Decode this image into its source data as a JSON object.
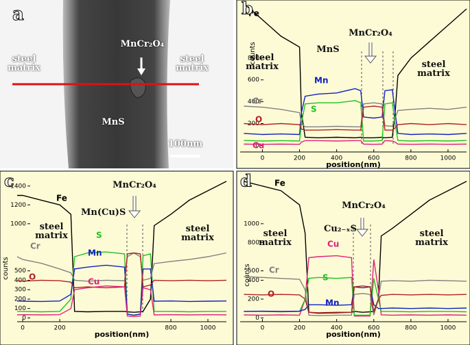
{
  "panel_a": {
    "label": "a",
    "annotations": [
      "steel matrix",
      "MnCr₂O₄",
      "steel matrix",
      "MnS",
      "100nm"
    ]
  },
  "chart_data": [
    {
      "type": "line",
      "label": "b",
      "ylabel": "counts",
      "xlabel": "position(nm)",
      "x": [
        -100,
        0,
        100,
        200,
        210,
        230,
        300,
        400,
        500,
        530,
        545,
        600,
        645,
        660,
        700,
        715,
        730,
        800,
        900,
        1000,
        1100
      ],
      "xlim": [
        -120,
        1100
      ],
      "xticks": [
        0,
        200,
        400,
        600,
        800,
        1000
      ],
      "ylim": [
        -60,
        1300
      ],
      "yticks": [
        0,
        200,
        400,
        600,
        800
      ],
      "series": [
        {
          "name": "Fe",
          "color": "#000000",
          "values": [
            1300,
            1150,
            1000,
            900,
            300,
            75,
            70,
            75,
            70,
            75,
            70,
            70,
            75,
            70,
            75,
            300,
            640,
            800,
            950,
            1100,
            1250
          ]
        },
        {
          "name": "Mn",
          "color": "#1020c0",
          "values": [
            110,
            100,
            105,
            100,
            300,
            450,
            470,
            480,
            520,
            500,
            260,
            250,
            260,
            500,
            510,
            300,
            110,
            100,
            105,
            100,
            110
          ]
        },
        {
          "name": "S",
          "color": "#20c020",
          "values": [
            45,
            40,
            44,
            40,
            200,
            380,
            390,
            390,
            410,
            390,
            40,
            40,
            45,
            380,
            390,
            200,
            45,
            40,
            44,
            40,
            45
          ]
        },
        {
          "name": "Cr",
          "color": "#808080",
          "values": [
            360,
            350,
            330,
            300,
            200,
            170,
            170,
            175,
            170,
            170,
            380,
            390,
            380,
            180,
            175,
            250,
            320,
            330,
            340,
            330,
            350
          ]
        },
        {
          "name": "O",
          "color": "#b02020",
          "values": [
            200,
            190,
            200,
            190,
            150,
            140,
            140,
            145,
            140,
            140,
            350,
            360,
            350,
            140,
            140,
            160,
            190,
            200,
            190,
            200,
            190
          ]
        },
        {
          "name": "Cu",
          "color": "#e0207a",
          "values": [
            12,
            10,
            12,
            10,
            30,
            44,
            44,
            40,
            44,
            44,
            12,
            10,
            12,
            44,
            40,
            30,
            12,
            10,
            12,
            10,
            12
          ]
        }
      ],
      "annotations": [
        "steel matrix",
        "MnS",
        "MnCr₂O₄",
        "steel matrix"
      ]
    },
    {
      "type": "line",
      "label": "c",
      "ylabel": "counts",
      "xlabel": "position(nm)",
      "x": [
        -30,
        0,
        100,
        200,
        260,
        280,
        350,
        450,
        550,
        565,
        600,
        635,
        650,
        690,
        710,
        800,
        900,
        1000,
        1100
      ],
      "xlim": [
        -30,
        1100
      ],
      "xticks": [
        0,
        200,
        800,
        1000
      ],
      "ylim": [
        -40,
        1500
      ],
      "yticks": [
        0,
        100,
        200,
        300,
        400,
        500,
        1000,
        1200,
        1400
      ],
      "series": [
        {
          "name": "Fe",
          "color": "#000000",
          "values": [
            1300,
            1300,
            1250,
            1200,
            1100,
            70,
            65,
            70,
            70,
            65,
            60,
            65,
            70,
            200,
            980,
            1100,
            1250,
            1350,
            1450
          ]
        },
        {
          "name": "S",
          "color": "#20c020",
          "values": [
            70,
            70,
            65,
            70,
            200,
            650,
            690,
            700,
            680,
            40,
            30,
            40,
            660,
            680,
            70,
            70,
            65,
            70,
            70
          ]
        },
        {
          "name": "Mn",
          "color": "#1020c0",
          "values": [
            180,
            178,
            175,
            180,
            250,
            520,
            540,
            560,
            540,
            40,
            30,
            40,
            520,
            520,
            178,
            180,
            175,
            178,
            180
          ]
        },
        {
          "name": "Cr",
          "color": "#808080",
          "values": [
            650,
            620,
            580,
            520,
            480,
            400,
            390,
            400,
            395,
            650,
            690,
            650,
            400,
            420,
            577,
            600,
            620,
            650,
            690
          ]
        },
        {
          "name": "O",
          "color": "#b02020",
          "values": [
            395,
            390,
            400,
            395,
            380,
            320,
            330,
            320,
            330,
            680,
            690,
            680,
            330,
            350,
            400,
            395,
            400,
            395,
            400
          ]
        },
        {
          "name": "Cu",
          "color": "#e0207a",
          "values": [
            33,
            35,
            33,
            35,
            100,
            300,
            320,
            340,
            330,
            20,
            15,
            20,
            320,
            300,
            33,
            35,
            33,
            35,
            33
          ]
        }
      ],
      "annotations": [
        "steel matrix",
        "Mn(Cu)S",
        "MnCr₂O₄",
        "steel matrix"
      ]
    },
    {
      "type": "line",
      "label": "d",
      "ylabel": "counts",
      "xlabel": "position(nm)",
      "x": [
        -100,
        0,
        100,
        200,
        230,
        250,
        300,
        400,
        480,
        495,
        540,
        580,
        600,
        625,
        640,
        700,
        800,
        900,
        1000,
        1100
      ],
      "xlim": [
        -120,
        1100
      ],
      "xticks": [
        0,
        200,
        400,
        600,
        800,
        1000
      ],
      "ylim": [
        -40,
        1500
      ],
      "yticks": [
        0,
        200,
        400,
        500,
        800,
        1000
      ],
      "series": [
        {
          "name": "Fe",
          "color": "#000000",
          "values": [
            1450,
            1400,
            1350,
            1200,
            900,
            60,
            50,
            55,
            60,
            70,
            60,
            65,
            70,
            200,
            870,
            950,
            1100,
            1250,
            1350,
            1450
          ]
        },
        {
          "name": "Cu",
          "color": "#e0207a",
          "values": [
            33,
            30,
            33,
            30,
            200,
            640,
            650,
            660,
            640,
            20,
            20,
            20,
            620,
            300,
            33,
            30,
            33,
            30,
            33,
            30
          ]
        },
        {
          "name": "S",
          "color": "#20c020",
          "values": [
            70,
            70,
            65,
            70,
            200,
            420,
            430,
            420,
            430,
            30,
            30,
            30,
            420,
            200,
            70,
            70,
            65,
            70,
            70,
            65
          ]
        },
        {
          "name": "Mn",
          "color": "#1020c0",
          "values": [
            70,
            72,
            70,
            72,
            90,
            140,
            140,
            135,
            140,
            330,
            320,
            330,
            140,
            100,
            100,
            105,
            100,
            105,
            100,
            105
          ]
        },
        {
          "name": "Cr",
          "color": "#808080",
          "values": [
            440,
            430,
            420,
            410,
            300,
            30,
            25,
            30,
            30,
            250,
            260,
            250,
            30,
            200,
            390,
            395,
            390,
            400,
            395,
            390
          ]
        },
        {
          "name": "O",
          "color": "#b02020",
          "values": [
            250,
            245,
            250,
            245,
            200,
            60,
            55,
            60,
            60,
            330,
            340,
            330,
            60,
            200,
            240,
            250,
            245,
            250,
            245,
            250
          ]
        }
      ],
      "annotations": [
        "steel matrix",
        "Cu₂₋ₓS",
        "MnCr₂O₄",
        "steel matrix"
      ]
    }
  ]
}
